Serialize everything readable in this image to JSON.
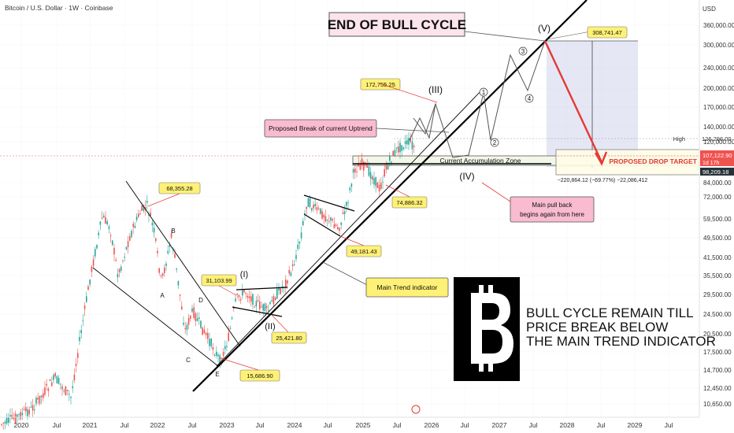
{
  "header": {
    "title": "Bitcoin / U.S. Dollar · 1W · Coinbase",
    "currency": "USD"
  },
  "colors": {
    "bull": "#26a69a",
    "bear": "#ef5350",
    "annotation_red": "#e53935",
    "yellow": "#fff176",
    "pink": "#f8bbd0",
    "trend": "#000000",
    "zone": "#c5cae9"
  },
  "chart_data": {
    "type": "candlestick",
    "price_scale": "log",
    "y_ticks": [
      "360,000.00",
      "300,000.00",
      "240,000.00",
      "200,000.00",
      "170,000.00",
      "140,000.00",
      "120,000.00",
      "100,000.00",
      "84,000.00",
      "72,000.00",
      "59,500.00",
      "49,500.00",
      "41,500.00",
      "35,500.00",
      "29,500.00",
      "24,500.00",
      "20,500.00",
      "17,500.00",
      "14,700.00",
      "12,450.00",
      "10,650.00"
    ],
    "x_ticks": [
      "2020",
      "Jul",
      "2021",
      "Jul",
      "2022",
      "Jul",
      "2023",
      "Jul",
      "2024",
      "Jul",
      "2025",
      "Jul",
      "2026",
      "Jul",
      "2027",
      "Jul",
      "2028",
      "Jul",
      "2029",
      "Jul"
    ],
    "price_tags": {
      "high_label": "High",
      "high": "126,296.00",
      "current": "107,122.90",
      "countdown": "1d 17h",
      "support": "98,209.18"
    },
    "pivot_labels": [
      {
        "text": "68,355.28"
      },
      {
        "text": "31,103.99"
      },
      {
        "text": "25,421.80"
      },
      {
        "text": "15,686.90"
      },
      {
        "text": "49,181.43"
      },
      {
        "text": "74,886.32"
      },
      {
        "text": "172,755.25"
      },
      {
        "text": "308,741.47"
      }
    ],
    "wave_labels": [
      "A",
      "B",
      "C",
      "D",
      "E",
      "(I)",
      "(II)",
      "(III)",
      "(IV)",
      "(V)",
      "1",
      "2",
      "3",
      "4"
    ],
    "annotations": {
      "end_of_bull": "END OF BULL CYCLE",
      "proposed_break": "Proposed Break of current Uptrend",
      "accumulation": "Current Accumulation Zone",
      "main_trend": "Main Trend indicator",
      "pullback_1": "Main pull back",
      "pullback_2": "begins again from here",
      "drop_target": "PROPOSED DROP TARGET",
      "measure": "−220,864.12 (−69.77%) −22,086,412"
    },
    "headline": [
      "BULL CYCLE REMAIN TILL",
      "PRICE BREAK BELOW",
      "THE MAIN TREND INDICATOR"
    ]
  }
}
